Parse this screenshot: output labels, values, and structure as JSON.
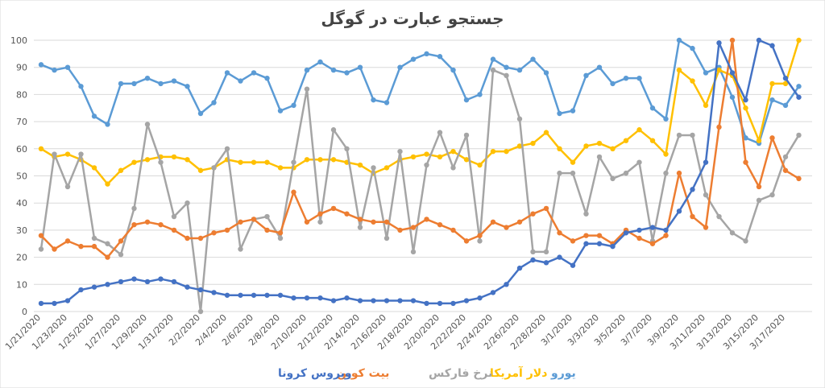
{
  "chart_data": {
    "type": "line",
    "title": "جستجو عبارت در گوگل",
    "ylim": [
      0,
      100
    ],
    "yticks": [
      0,
      10,
      20,
      30,
      40,
      50,
      60,
      70,
      80,
      90,
      100
    ],
    "grid": true,
    "legend_position": "bottom",
    "x": [
      "1/21/2020",
      "1/22/2020",
      "1/23/2020",
      "1/24/2020",
      "1/25/2020",
      "1/26/2020",
      "1/27/2020",
      "1/28/2020",
      "1/29/2020",
      "1/30/2020",
      "1/31/2020",
      "2/1/2020",
      "2/2/2020",
      "2/3/2020",
      "2/4/2020",
      "2/5/2020",
      "2/6/2020",
      "2/7/2020",
      "2/8/2020",
      "2/9/2020",
      "2/10/2020",
      "2/11/2020",
      "2/12/2020",
      "2/13/2020",
      "2/14/2020",
      "2/15/2020",
      "2/16/2020",
      "2/17/2020",
      "2/18/2020",
      "2/19/2020",
      "2/20/2020",
      "2/21/2020",
      "2/22/2020",
      "2/23/2020",
      "2/24/2020",
      "2/25/2020",
      "2/26/2020",
      "2/27/2020",
      "2/28/2020",
      "2/29/2020",
      "3/1/2020",
      "3/2/2020",
      "3/3/2020",
      "3/4/2020",
      "3/5/2020",
      "3/6/2020",
      "3/7/2020",
      "3/8/2020",
      "3/9/2020",
      "3/10/2020",
      "3/11/2020",
      "3/12/2020",
      "3/13/2020",
      "3/14/2020",
      "3/15/2020",
      "3/16/2020",
      "3/17/2020",
      "3/18/2020"
    ],
    "xtick_labels": [
      "1/21/2020",
      "1/23/2020",
      "1/25/2020",
      "1/27/2020",
      "1/29/2020",
      "1/31/2020",
      "2/2/2020",
      "2/4/2020",
      "2/6/2020",
      "2/8/2020",
      "2/10/2020",
      "2/12/2020",
      "2/14/2020",
      "2/16/2020",
      "2/18/2020",
      "2/20/2020",
      "2/22/2020",
      "2/24/2020",
      "2/26/2020",
      "2/28/2020",
      "3/1/2020",
      "3/3/2020",
      "3/5/2020",
      "3/7/2020",
      "3/9/2020",
      "3/11/2020",
      "3/13/2020",
      "3/15/2020",
      "3/17/2020"
    ],
    "series": [
      {
        "name": "یورو",
        "color": "#5B9BD5",
        "values": [
          91,
          89,
          90,
          83,
          72,
          69,
          84,
          84,
          86,
          84,
          85,
          83,
          73,
          77,
          88,
          85,
          88,
          86,
          74,
          76,
          89,
          92,
          89,
          88,
          90,
          78,
          77,
          90,
          93,
          95,
          94,
          89,
          78,
          80,
          93,
          90,
          89,
          93,
          88,
          73,
          74,
          87,
          90,
          84,
          86,
          86,
          75,
          71,
          100,
          97,
          88,
          90,
          79,
          64,
          62,
          78,
          76,
          83
        ]
      },
      {
        "name": "دلار آمریکا",
        "color": "#FFC000",
        "values": [
          60,
          57,
          58,
          56,
          53,
          47,
          52,
          55,
          56,
          57,
          57,
          56,
          52,
          53,
          56,
          55,
          55,
          55,
          53,
          53,
          56,
          56,
          56,
          55,
          54,
          51,
          53,
          56,
          57,
          58,
          57,
          59,
          56,
          54,
          59,
          59,
          61,
          62,
          66,
          60,
          55,
          61,
          62,
          60,
          63,
          67,
          63,
          58,
          89,
          85,
          76,
          89,
          87,
          75,
          63,
          84,
          84,
          100
        ]
      },
      {
        "name": "نرخ فارکس",
        "color": "#A5A5A5",
        "values": [
          23,
          58,
          46,
          58,
          27,
          25,
          21,
          38,
          69,
          55,
          35,
          40,
          0,
          53,
          60,
          23,
          34,
          35,
          27,
          55,
          82,
          33,
          67,
          60,
          31,
          53,
          27,
          59,
          22,
          54,
          66,
          53,
          65,
          26,
          89,
          87,
          71,
          22,
          22,
          51,
          51,
          36,
          57,
          49,
          51,
          55,
          26,
          51,
          65,
          65,
          43,
          35,
          29,
          26,
          41,
          43,
          57,
          65
        ]
      },
      {
        "name": "بیت کوین",
        "color": "#ED7D31",
        "values": [
          28,
          23,
          26,
          24,
          24,
          20,
          26,
          32,
          33,
          32,
          30,
          27,
          27,
          29,
          30,
          33,
          34,
          30,
          29,
          44,
          33,
          36,
          38,
          36,
          34,
          33,
          33,
          30,
          31,
          34,
          32,
          30,
          26,
          28,
          33,
          31,
          33,
          36,
          38,
          29,
          26,
          28,
          28,
          25,
          30,
          27,
          25,
          28,
          51,
          35,
          31,
          68,
          100,
          55,
          46,
          64,
          52,
          49
        ]
      },
      {
        "name": "ویروس کرونا",
        "color": "#4472C4",
        "values": [
          3,
          3,
          4,
          8,
          9,
          10,
          11,
          12,
          11,
          12,
          11,
          9,
          8,
          7,
          6,
          6,
          6,
          6,
          6,
          5,
          5,
          5,
          4,
          5,
          4,
          4,
          4,
          4,
          4,
          3,
          3,
          3,
          4,
          5,
          7,
          10,
          16,
          19,
          18,
          20,
          17,
          25,
          25,
          24,
          29,
          30,
          31,
          30,
          37,
          45,
          55,
          99,
          88,
          78,
          100,
          98,
          86,
          79
        ]
      }
    ]
  }
}
